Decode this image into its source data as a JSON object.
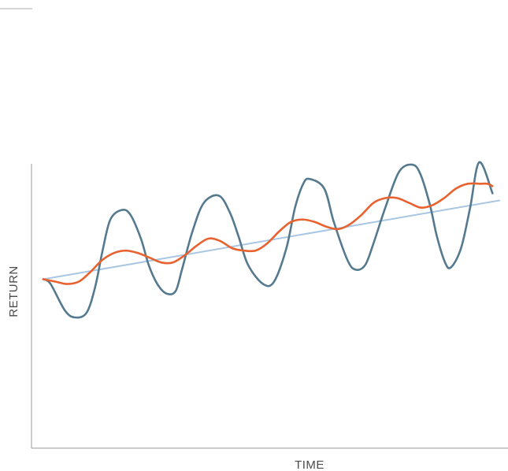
{
  "chart_data": {
    "type": "line",
    "title": "",
    "xlabel": "TIME",
    "ylabel": "RETURN",
    "grid": false,
    "legend": "none",
    "xlim": [
      0,
      100
    ],
    "ylim": [
      0,
      100
    ],
    "series": [
      {
        "color": "#a9c6e2",
        "x": [
          0,
          100
        ],
        "y": [
          50,
          83
        ]
      },
      {
        "color": "#55798e",
        "x": [
          0,
          1.6,
          4.7,
          6.9,
          9.5,
          11.4,
          13.0,
          14.7,
          17.2,
          19.1,
          21.4,
          23.1,
          25.0,
          27.0,
          29.0,
          30.4,
          32.7,
          35.2,
          38.5,
          40.9,
          42.8,
          44.9,
          48.2,
          50.6,
          53.3,
          55.2,
          57.0,
          58.4,
          61.6,
          63.7,
          66.7,
          68.5,
          70.6,
          72.4,
          75.0,
          78.0,
          80.9,
          82.7,
          84.8,
          86.3,
          88.1,
          89.4,
          91.6,
          93.6,
          95.6,
          98.5
        ],
        "y": [
          50,
          48,
          37,
          34,
          36,
          47,
          62,
          75,
          79,
          77,
          67,
          56,
          48,
          44,
          45,
          54,
          70,
          82,
          85,
          78,
          68,
          56,
          48,
          49,
          63,
          80,
          90,
          92,
          88,
          74,
          58,
          54,
          56,
          65,
          80,
          95,
          98,
          94,
          81,
          68,
          57,
          55,
          63,
          80,
          99,
          86
        ]
      },
      {
        "color": "#e8622f",
        "x": [
          0,
          2.6,
          5.2,
          7.8,
          10.3,
          12.9,
          15.5,
          18.1,
          20.7,
          23.3,
          25.9,
          28.4,
          31.0,
          33.6,
          36.2,
          38.8,
          41.4,
          44.0,
          46.6,
          49.1,
          51.7,
          54.3,
          56.9,
          59.5,
          62.1,
          64.7,
          67.2,
          69.8,
          72.4,
          75.0,
          77.6,
          80.2,
          82.8,
          85.3,
          87.9,
          90.5,
          93.1,
          95.7,
          97.4,
          98.5
        ],
        "y": [
          50,
          49,
          48,
          49,
          53,
          58,
          61,
          62,
          61,
          59,
          57,
          57,
          60,
          64,
          67,
          66,
          63,
          62,
          62,
          65,
          70,
          74,
          75,
          74,
          72,
          71,
          73,
          77,
          82,
          84,
          84,
          82,
          80,
          81,
          84,
          88,
          90,
          90,
          90,
          89
        ]
      }
    ]
  }
}
